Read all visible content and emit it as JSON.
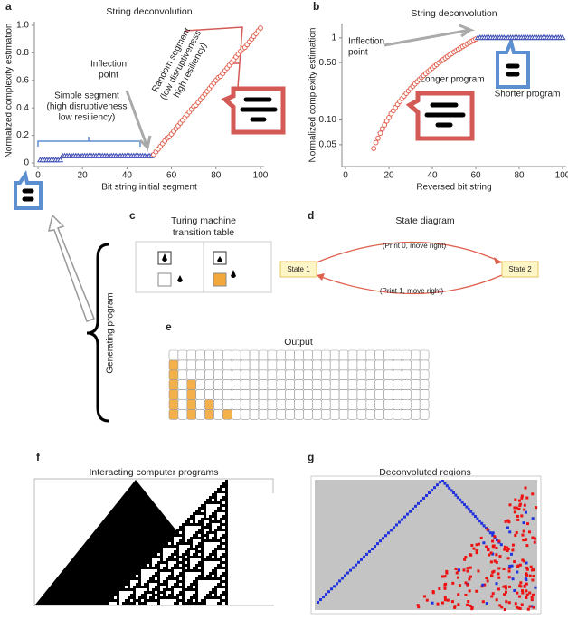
{
  "chart_data": [
    {
      "type": "scatter",
      "panel_label": "a",
      "title": "String deconvolution",
      "xlabel": "Bit string initial segment",
      "ylabel": "Normalized complexity estimation",
      "xlim": [
        0,
        100
      ],
      "xticks": [
        0,
        20,
        40,
        60,
        80,
        100
      ],
      "ylim": [
        0,
        1
      ],
      "yticks": [
        0,
        0.2,
        0.4,
        0.6,
        0.8,
        {
          "value": 1,
          "label": "1.0"
        }
      ],
      "series": [
        {
          "color": "#3f4fb5",
          "marker": "triangle",
          "x": [
            1,
            2,
            3,
            4,
            5,
            6,
            7,
            8,
            9,
            10,
            11,
            12,
            13,
            14,
            15,
            16,
            17,
            18,
            19,
            20,
            21,
            22,
            23,
            24,
            25,
            26,
            27,
            28,
            29,
            30,
            31,
            32,
            33,
            34,
            35,
            36,
            37,
            38,
            39,
            40,
            41,
            42,
            43,
            44,
            45,
            46,
            47,
            48,
            49,
            50,
            51
          ],
          "values": [
            0.02,
            0.02,
            0.02,
            0.02,
            0.02,
            0.02,
            0.02,
            0.02,
            0.02,
            0.02,
            0.05,
            0.05,
            0.05,
            0.05,
            0.05,
            0.05,
            0.05,
            0.05,
            0.05,
            0.05,
            0.05,
            0.05,
            0.05,
            0.05,
            0.05,
            0.05,
            0.05,
            0.05,
            0.05,
            0.05,
            0.05,
            0.05,
            0.05,
            0.05,
            0.05,
            0.05,
            0.05,
            0.05,
            0.05,
            0.05,
            0.05,
            0.05,
            0.05,
            0.05,
            0.05,
            0.05,
            0.05,
            0.05,
            0.05,
            0.05,
            0.05
          ]
        },
        {
          "color": "#e0604e",
          "marker": "circle",
          "x": [
            52,
            53,
            54,
            55,
            56,
            57,
            58,
            59,
            60,
            61,
            62,
            63,
            64,
            65,
            66,
            67,
            68,
            69,
            70,
            71,
            72,
            73,
            74,
            75,
            76,
            77,
            78,
            79,
            80,
            81,
            82,
            83,
            84,
            85,
            86,
            87,
            88,
            89,
            90,
            91,
            92,
            93,
            94,
            95,
            96,
            97,
            98,
            99,
            100
          ],
          "values": [
            0.06,
            0.08,
            0.1,
            0.12,
            0.14,
            0.16,
            0.18,
            0.19,
            0.21,
            0.23,
            0.25,
            0.27,
            0.29,
            0.31,
            0.33,
            0.35,
            0.37,
            0.39,
            0.41,
            0.42,
            0.44,
            0.46,
            0.48,
            0.5,
            0.52,
            0.54,
            0.56,
            0.58,
            0.6,
            0.62,
            0.63,
            0.65,
            0.67,
            0.69,
            0.71,
            0.73,
            0.75,
            0.77,
            0.79,
            0.81,
            0.83,
            0.84,
            0.86,
            0.88,
            0.9,
            0.92,
            0.94,
            0.96,
            0.98
          ]
        }
      ],
      "annotations": [
        {
          "lines": [
            "Inflection",
            "point"
          ]
        },
        {
          "lines": [
            "Simple segment",
            "(high disruptiveness",
            "low resiliency)"
          ]
        },
        {
          "lines": [
            "Random segment",
            "(low disruptiveness",
            "high resiliency)"
          ]
        }
      ]
    },
    {
      "type": "scatter",
      "panel_label": "b",
      "title": "String deconvolution",
      "xlabel": "Reversed bit string",
      "ylabel": "Normalized complexity estimation",
      "log_y": true,
      "xlim": [
        0,
        100
      ],
      "xticks": [
        0,
        20,
        40,
        60,
        80,
        100
      ],
      "ylim": [
        0.03,
        1.35
      ],
      "yticks": [
        0.05,
        {
          "value": 0.1,
          "label": "0.10"
        },
        {
          "value": 0.5,
          "label": "0.50"
        },
        1
      ],
      "series": [
        {
          "color": "#e0604e",
          "marker": "circle",
          "x": [
            13,
            14,
            15,
            16,
            17,
            18,
            19,
            20,
            21,
            22,
            23,
            24,
            25,
            26,
            27,
            28,
            29,
            30,
            31,
            32,
            33,
            34,
            35,
            36,
            37,
            38,
            39,
            40,
            41,
            42,
            43,
            44,
            45,
            46,
            47,
            48,
            49,
            50,
            51,
            52,
            53,
            54,
            55,
            56,
            57,
            58,
            59,
            60
          ],
          "values": [
            0.045,
            0.053,
            0.06,
            0.069,
            0.078,
            0.087,
            0.097,
            0.107,
            0.119,
            0.13,
            0.142,
            0.155,
            0.168,
            0.182,
            0.196,
            0.211,
            0.226,
            0.242,
            0.258,
            0.275,
            0.293,
            0.311,
            0.329,
            0.348,
            0.368,
            0.388,
            0.409,
            0.43,
            0.452,
            0.474,
            0.497,
            0.52,
            0.544,
            0.569,
            0.594,
            0.619,
            0.645,
            0.672,
            0.699,
            0.727,
            0.755,
            0.784,
            0.813,
            0.843,
            0.873,
            0.904,
            0.936,
            0.967
          ]
        },
        {
          "color": "#3f4fb5",
          "marker": "triangle",
          "x": [
            61,
            62,
            63,
            64,
            65,
            66,
            67,
            68,
            69,
            70,
            71,
            72,
            73,
            74,
            75,
            76,
            77,
            78,
            79,
            80,
            81,
            82,
            83,
            84,
            85,
            86,
            87,
            88,
            89,
            90,
            91,
            92,
            93,
            94,
            95,
            96,
            97,
            98,
            99,
            100
          ],
          "values": [
            1,
            1,
            1,
            1,
            1,
            1,
            1,
            1,
            1,
            1,
            1,
            1,
            1,
            1,
            1,
            1,
            1,
            1,
            1,
            1,
            1,
            1,
            1,
            1,
            1,
            1,
            1,
            1,
            1,
            1,
            1,
            1,
            1,
            1,
            1,
            1,
            1,
            1,
            1,
            1
          ]
        }
      ],
      "annotations": [
        {
          "lines": [
            "Inflection",
            "point"
          ]
        },
        {
          "lines": [
            "Longer program"
          ]
        },
        {
          "lines": [
            "Shorter program"
          ]
        }
      ]
    }
  ],
  "panels": {
    "generating_program": "Generating program",
    "c": {
      "label": "c",
      "title": [
        "Turing machine",
        "transition table"
      ]
    },
    "d": {
      "label": "d",
      "title": "State diagram",
      "nodes": [
        "State 1",
        "State 2"
      ],
      "edges": [
        "(Print 0, move right)",
        "(Print 1, move right)"
      ]
    },
    "e": {
      "label": "e",
      "title": "Output"
    },
    "f": {
      "label": "f",
      "title": "Interacting computer programs"
    },
    "g": {
      "label": "g",
      "title": "Deconvoluted regions"
    }
  }
}
